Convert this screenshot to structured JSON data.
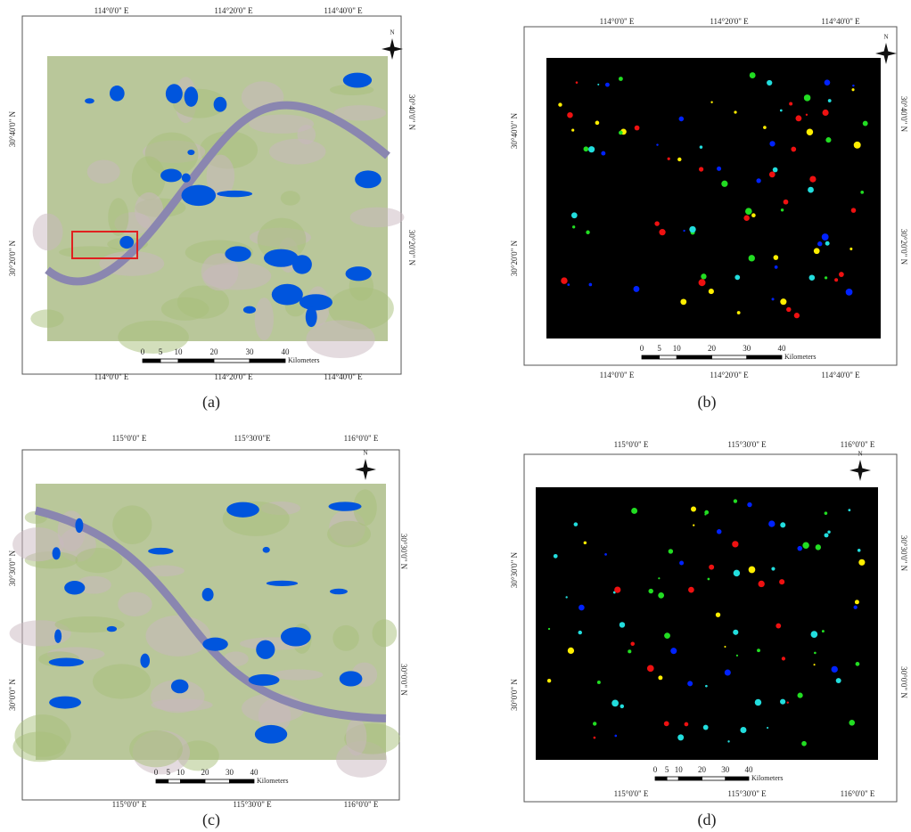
{
  "panels": [
    {
      "label": "(a)",
      "compass": "N",
      "top_labels": [
        "114°0'0\" E",
        "114°20'0\" E",
        "114°40'0\" E"
      ],
      "bottom_labels": [
        "114°0'0\" E",
        "114°20'0\" E",
        "114°40'0\" E"
      ],
      "left_labels": [
        "30°40'0\" N",
        "30°20'0\" N"
      ],
      "right_labels": [
        "30°40'0\" N",
        "30°20'0\" N"
      ],
      "scale_ticks": [
        0,
        5,
        10,
        20,
        30,
        40
      ],
      "scale_unit": "Kilometers"
    },
    {
      "label": "(b)",
      "compass": "N",
      "top_labels": [
        "114°0'0\" E",
        "114°20'0\" E",
        "114°40'0\" E"
      ],
      "bottom_labels": [
        "114°0'0\" E",
        "114°20'0\" E",
        "114°40'0\" E"
      ],
      "left_labels": [
        "30°40'0\" N",
        "30°20'0\" N"
      ],
      "right_labels": [
        "30°40'0\" N",
        "30°20'0\" N"
      ],
      "scale_ticks": [
        0,
        5,
        10,
        20,
        30,
        40
      ],
      "scale_unit": "Kilometers"
    },
    {
      "label": "(c)",
      "compass": "N",
      "top_labels": [
        "115°0'0\" E",
        "115°30'0\"E",
        "116°0'0\" E"
      ],
      "bottom_labels": [
        "115°0'0\" E",
        "115°30'0\" E",
        "116°0'0\" E"
      ],
      "left_labels": [
        "30°30'0\" N",
        "30°0'0\" N"
      ],
      "right_labels": [
        "30°30'0\" N",
        "30°0'0\" N"
      ],
      "scale_ticks": [
        0,
        5,
        10,
        20,
        30,
        40
      ],
      "scale_unit": "Kilometers"
    },
    {
      "label": "(d)",
      "compass": "N",
      "top_labels": [
        "115°0'0\" E",
        "115°30'0\" E",
        "116°0'0\" E"
      ],
      "bottom_labels": [
        "115°0'0\" E",
        "115°30'0\" E",
        "116°0'0\" E"
      ],
      "left_labels": [
        "30°30'0\" N",
        "30°0'0\" N"
      ],
      "right_labels": [
        "30°30'0\" N",
        "30°0'0\" N"
      ],
      "scale_ticks": [
        0,
        5,
        10,
        20,
        30,
        40
      ],
      "scale_unit": "Kilometers"
    }
  ]
}
